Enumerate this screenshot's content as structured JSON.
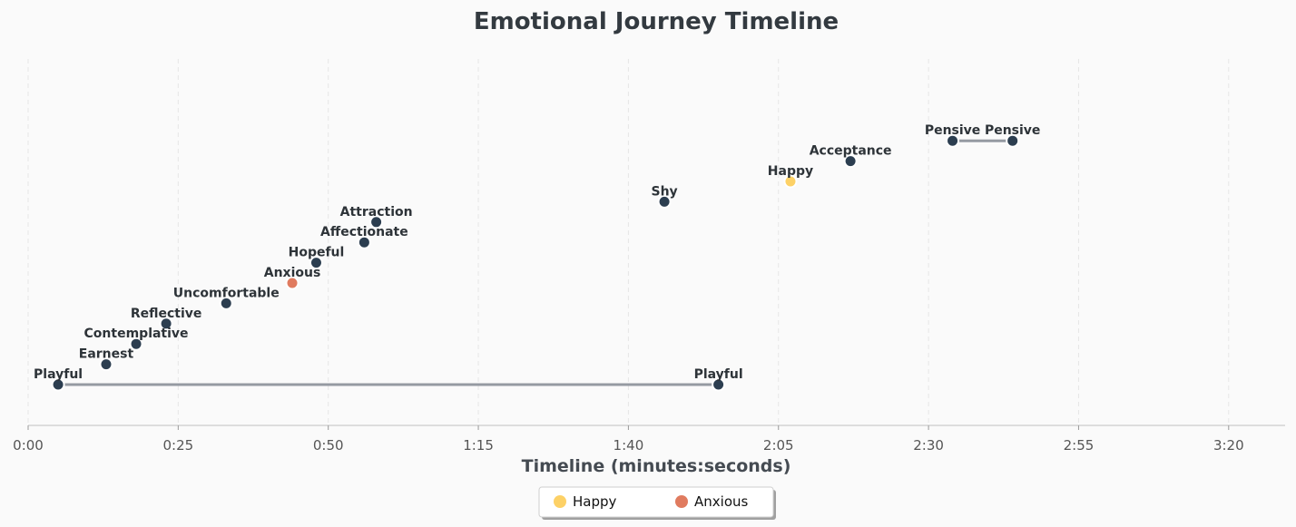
{
  "chart_data": {
    "type": "scatter",
    "title": "Emotional Journey Timeline",
    "xlabel": "Timeline (minutes:seconds)",
    "ylabel": "",
    "x_unit": "seconds",
    "xlim": [
      0,
      210
    ],
    "x_ticks": [
      {
        "value": 0,
        "label": "0:00"
      },
      {
        "value": 25,
        "label": "0:25"
      },
      {
        "value": 50,
        "label": "0:50"
      },
      {
        "value": 75,
        "label": "1:15"
      },
      {
        "value": 100,
        "label": "1:40"
      },
      {
        "value": 125,
        "label": "2:05"
      },
      {
        "value": 150,
        "label": "2:30"
      },
      {
        "value": 175,
        "label": "2:55"
      },
      {
        "value": 200,
        "label": "3:20"
      }
    ],
    "grid": {
      "x": true,
      "y": false
    },
    "legend": {
      "placement": "bottom-center"
    },
    "points": [
      {
        "emotion": "Playful",
        "start": 5,
        "end": 115,
        "level": 0,
        "category": "default"
      },
      {
        "emotion": "Earnest",
        "start": 13,
        "end": null,
        "level": 1,
        "category": "default"
      },
      {
        "emotion": "Contemplative",
        "start": 18,
        "end": null,
        "level": 2,
        "category": "default"
      },
      {
        "emotion": "Reflective",
        "start": 23,
        "end": null,
        "level": 3,
        "category": "default"
      },
      {
        "emotion": "Uncomfortable",
        "start": 33,
        "end": null,
        "level": 4,
        "category": "default"
      },
      {
        "emotion": "Anxious",
        "start": 44,
        "end": null,
        "level": 5,
        "category": "anxious"
      },
      {
        "emotion": "Hopeful",
        "start": 48,
        "end": null,
        "level": 6,
        "category": "default"
      },
      {
        "emotion": "Affectionate",
        "start": 56,
        "end": null,
        "level": 7,
        "category": "default"
      },
      {
        "emotion": "Attraction",
        "start": 58,
        "end": null,
        "level": 8,
        "category": "default"
      },
      {
        "emotion": "Shy",
        "start": 106,
        "end": null,
        "level": 9,
        "category": "default"
      },
      {
        "emotion": "Happy",
        "start": 127,
        "end": null,
        "level": 10,
        "category": "happy"
      },
      {
        "emotion": "Acceptance",
        "start": 137,
        "end": null,
        "level": 11,
        "category": "default"
      },
      {
        "emotion": "Pensive",
        "start": 154,
        "end": 164,
        "level": 12,
        "category": "default"
      }
    ],
    "legend_entries": [
      {
        "name": "Happy",
        "color": "#fdd166"
      },
      {
        "name": "Anxious",
        "color": "#e07b5f"
      }
    ],
    "colors": {
      "default": "#2c3e50",
      "happy": "#fdd166",
      "anxious": "#e07b5f",
      "connector": "#959aa2",
      "grid": "#e6e6e6",
      "axis": "#cccccc"
    }
  }
}
